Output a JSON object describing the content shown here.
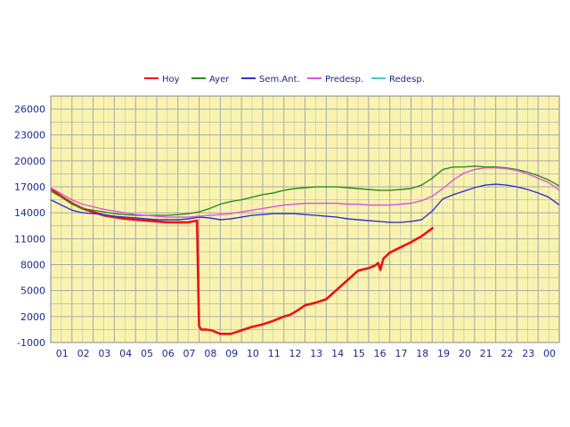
{
  "chart_data": {
    "type": "line",
    "title": "",
    "xlabel": "",
    "ylabel": "",
    "x_tick_labels": [
      "01",
      "02",
      "03",
      "04",
      "05",
      "06",
      "07",
      "08",
      "09",
      "10",
      "11",
      "12",
      "13",
      "14",
      "15",
      "16",
      "17",
      "18",
      "19",
      "20",
      "21",
      "22",
      "23",
      "00"
    ],
    "y_ticks": [
      -1000,
      2000,
      5000,
      8000,
      11000,
      14000,
      17000,
      20000,
      23000,
      26000
    ],
    "y_tick_labels": [
      "-1000",
      "2000",
      "5000",
      "8000",
      "11000",
      "14000",
      "17000",
      "20000",
      "23000",
      "26000"
    ],
    "xlim": [
      0,
      24
    ],
    "ylim": [
      -1000,
      27500
    ],
    "grid": true,
    "legend_position": "top-center",
    "plot_background": "#f8f4b0",
    "grid_color": "#a8a8a8",
    "series": [
      {
        "name": "Hoy",
        "color": "#ee1111",
        "x": [
          0,
          0.5,
          1,
          1.5,
          2,
          2.5,
          3,
          3.5,
          4,
          4.5,
          5,
          5.5,
          6,
          6.5,
          6.9,
          7.0,
          7.1,
          7.3,
          7.6,
          8,
          8.5,
          9,
          9.5,
          10,
          10.5,
          11,
          11.3,
          11.7,
          12,
          12.5,
          13,
          13.5,
          14,
          14.5,
          15,
          15.3,
          15.45,
          15.55,
          15.7,
          16,
          16.5,
          17,
          17.5,
          17.9,
          18.05
        ],
        "y": [
          16800,
          15900,
          15100,
          14500,
          14100,
          13700,
          13500,
          13300,
          13200,
          13100,
          13000,
          12900,
          12900,
          12900,
          13100,
          900,
          500,
          500,
          400,
          0,
          0,
          400,
          800,
          1100,
          1500,
          2000,
          2200,
          2800,
          3300,
          3600,
          4000,
          5100,
          6200,
          7300,
          7600,
          7900,
          8200,
          7400,
          8700,
          9400,
          10000,
          10600,
          11300,
          12000,
          12300
        ]
      },
      {
        "name": "Ayer",
        "color": "#2e8b1e",
        "x": [
          0,
          0.5,
          1,
          1.5,
          2,
          2.5,
          3,
          3.5,
          4,
          4.5,
          5,
          5.5,
          6,
          6.5,
          7,
          7.5,
          8,
          8.5,
          9,
          9.5,
          10,
          10.5,
          11,
          11.5,
          12,
          12.5,
          13,
          13.5,
          14,
          14.5,
          15,
          15.5,
          16,
          16.5,
          17,
          17.5,
          18,
          18.5,
          19,
          19.5,
          20,
          20.5,
          21,
          21.5,
          22,
          22.5,
          23,
          23.5,
          24
        ],
        "y": [
          16500,
          15800,
          15000,
          14500,
          14300,
          14100,
          13900,
          13800,
          13700,
          13700,
          13700,
          13700,
          13800,
          13900,
          14100,
          14500,
          15000,
          15300,
          15500,
          15800,
          16100,
          16300,
          16600,
          16800,
          16900,
          17000,
          17000,
          17000,
          16900,
          16800,
          16700,
          16600,
          16600,
          16700,
          16800,
          17200,
          18000,
          19000,
          19300,
          19300,
          19400,
          19300,
          19300,
          19200,
          19000,
          18700,
          18300,
          17800,
          17100
        ]
      },
      {
        "name": "Sem.Ant.",
        "color": "#3333cc",
        "x": [
          0,
          0.5,
          1,
          1.5,
          2,
          2.5,
          3,
          3.5,
          4,
          4.5,
          5,
          5.5,
          6,
          6.5,
          7,
          7.5,
          8,
          8.5,
          9,
          9.5,
          10,
          10.5,
          11,
          11.5,
          12,
          12.5,
          13,
          13.5,
          14,
          14.5,
          15,
          15.5,
          16,
          16.5,
          17,
          17.5,
          18,
          18.5,
          19,
          19.5,
          20,
          20.5,
          21,
          21.5,
          22,
          22.5,
          23,
          23.5,
          24
        ],
        "y": [
          15500,
          14900,
          14300,
          14000,
          13900,
          13800,
          13600,
          13500,
          13400,
          13300,
          13200,
          13200,
          13200,
          13300,
          13500,
          13400,
          13200,
          13300,
          13500,
          13700,
          13800,
          13900,
          13900,
          13900,
          13800,
          13700,
          13600,
          13500,
          13300,
          13200,
          13100,
          13000,
          12900,
          12900,
          13000,
          13200,
          14200,
          15600,
          16100,
          16500,
          16900,
          17200,
          17300,
          17200,
          17000,
          16700,
          16300,
          15800,
          14900
        ]
      },
      {
        "name": "Predesp.",
        "color": "#dd55dd",
        "x": [
          0,
          0.5,
          1,
          1.5,
          2,
          2.5,
          3,
          3.5,
          4,
          4.5,
          5,
          5.5,
          6,
          6.5,
          7,
          7.5,
          8,
          8.5,
          9,
          9.5,
          10,
          10.5,
          11,
          11.5,
          12,
          12.5,
          13,
          13.5,
          14,
          14.5,
          15,
          15.5,
          16,
          16.5,
          17,
          17.5,
          18,
          18.5,
          19,
          19.5,
          20,
          20.5,
          21,
          21.5,
          22,
          22.5,
          23,
          23.5,
          24
        ],
        "y": [
          16900,
          16200,
          15500,
          15000,
          14700,
          14400,
          14200,
          14000,
          13800,
          13700,
          13600,
          13500,
          13500,
          13500,
          13600,
          13700,
          13800,
          13900,
          14100,
          14300,
          14500,
          14700,
          14900,
          15000,
          15100,
          15100,
          15100,
          15100,
          15000,
          15000,
          14900,
          14900,
          14900,
          15000,
          15100,
          15400,
          15900,
          16800,
          17800,
          18600,
          19000,
          19200,
          19200,
          19100,
          18900,
          18500,
          18000,
          17500,
          16600
        ]
      },
      {
        "name": "Redesp.",
        "color": "#44cccc",
        "x": [],
        "y": []
      }
    ]
  }
}
